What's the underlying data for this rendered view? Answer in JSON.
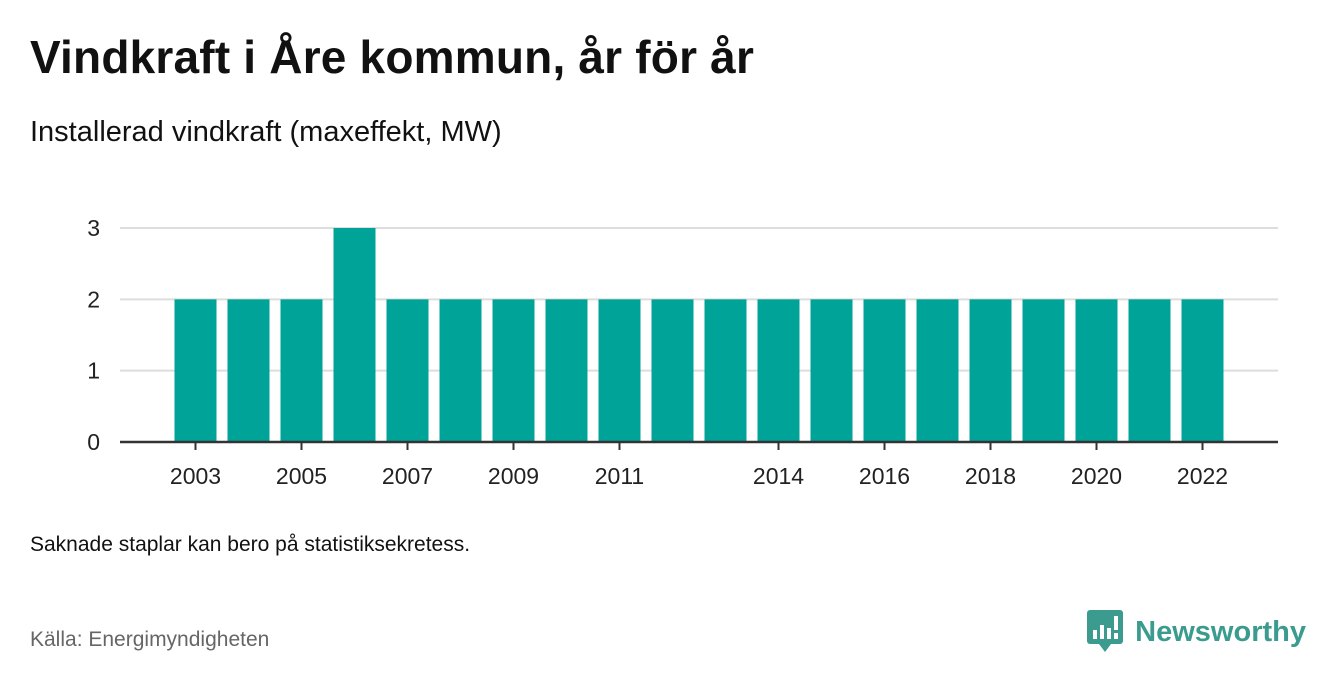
{
  "title": "Vindkraft i Åre kommun, år för år",
  "subtitle": "Installerad vindkraft (maxeffekt, MW)",
  "note": "Saknade staplar kan bero på statistiksekretess.",
  "source": "Källa: Energimyndigheten",
  "brand": {
    "name": "Newsworthy",
    "icon": "newsworthy-logo-icon",
    "color": "#3a9b8e"
  },
  "chart_data": {
    "type": "bar",
    "categories": [
      "2003",
      "2004",
      "2005",
      "2006",
      "2007",
      "2008",
      "2009",
      "2010",
      "2011",
      "2012",
      "2013",
      "2014",
      "2015",
      "2016",
      "2017",
      "2018",
      "2019",
      "2020",
      "2021",
      "2022"
    ],
    "values": [
      2,
      2,
      2,
      3,
      2,
      2,
      2,
      2,
      2,
      2,
      2,
      2,
      2,
      2,
      2,
      2,
      2,
      2,
      2,
      2
    ],
    "x_tick_labels": [
      "2003",
      "2005",
      "2007",
      "2009",
      "2011",
      "2014",
      "2016",
      "2018",
      "2020",
      "2022"
    ],
    "y_ticks": [
      "0",
      "1",
      "2",
      "3"
    ],
    "ylim": [
      0,
      3
    ],
    "grid": true,
    "bar_color": "#00a398",
    "xlabel": "",
    "ylabel": ""
  }
}
